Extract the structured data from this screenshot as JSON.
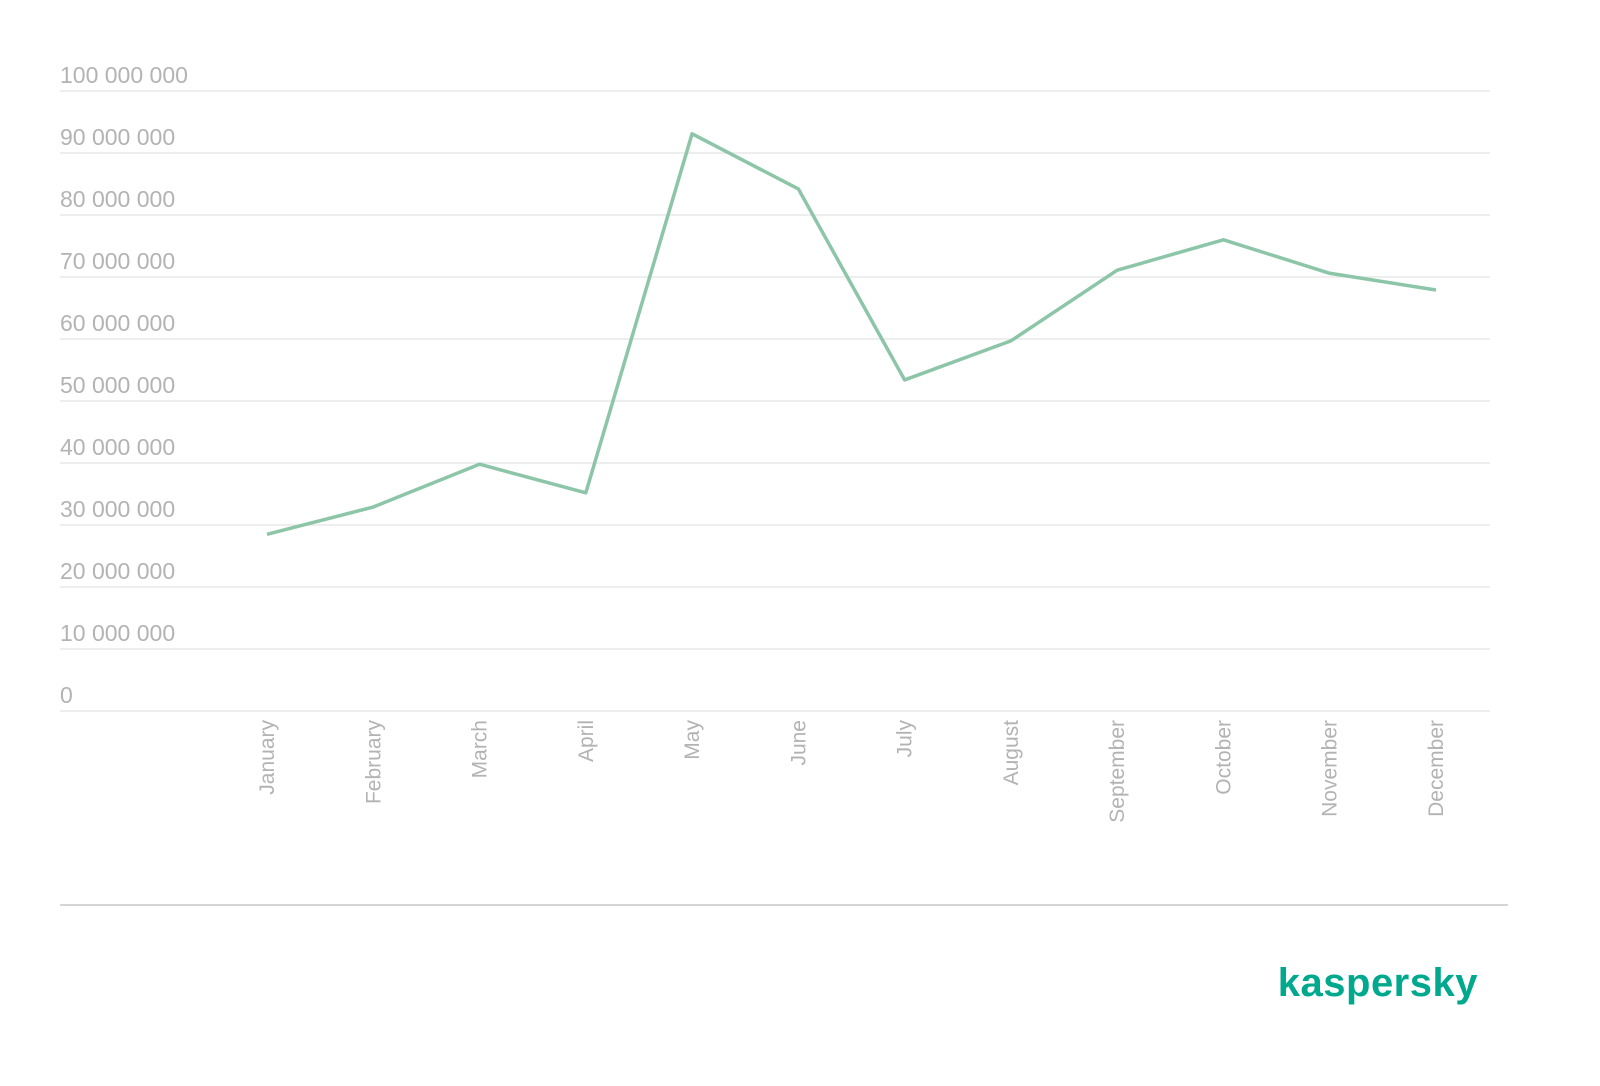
{
  "chart_data": {
    "type": "line",
    "categories": [
      "January",
      "February",
      "March",
      "April",
      "May",
      "June",
      "July",
      "August",
      "September",
      "October",
      "November",
      "December"
    ],
    "series": [
      {
        "color": "#8cc5a7",
        "values": [
          28500000,
          32900000,
          39800000,
          35200000,
          93100000,
          84200000,
          53400000,
          59700000,
          71100000,
          76000000,
          70600000,
          67900000
        ]
      }
    ],
    "ylim": [
      0,
      100000000
    ],
    "yticks": [
      0,
      {
        "value": 10000000,
        "label": "10 000 000"
      },
      {
        "value": 20000000,
        "label": "20 000 000"
      },
      {
        "value": 30000000,
        "label": "30 000 000"
      },
      {
        "value": 40000000,
        "label": "40 000 000"
      },
      {
        "value": 50000000,
        "label": "50 000 000"
      },
      {
        "value": 60000000,
        "label": "60 000 000"
      },
      {
        "value": 70000000,
        "label": "70 000 000"
      },
      {
        "value": 80000000,
        "label": "80 000 000"
      },
      {
        "value": 90000000,
        "label": "90 000 000"
      },
      {
        "value": 100000000,
        "label": "100 000 000"
      }
    ],
    "grid": true
  },
  "logo": "kaspersky"
}
